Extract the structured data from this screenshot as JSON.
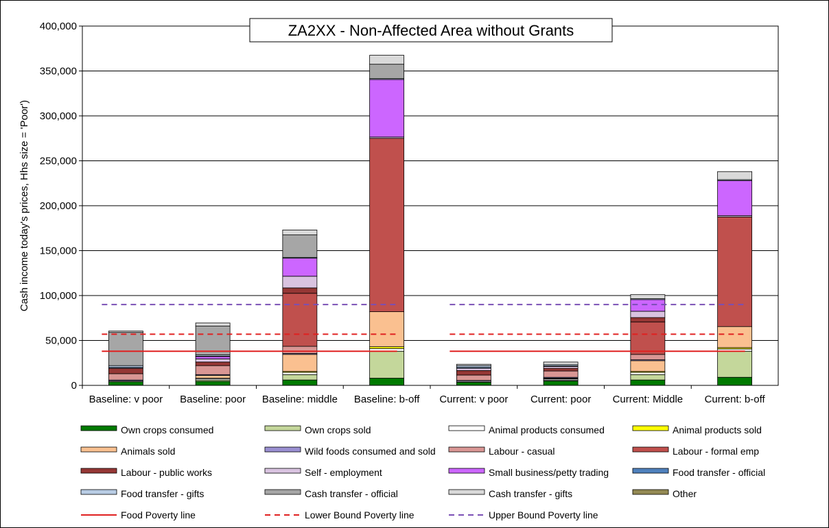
{
  "chart_data": {
    "type": "bar",
    "stacked": true,
    "title": "ZA2XX - Non-Affected Area without Grants",
    "xlabel": "",
    "ylabel": "Cash income today's prices, Hhs size = 'Poor')",
    "ylim": [
      0,
      400000
    ],
    "yticks": [
      0,
      50000,
      100000,
      150000,
      200000,
      250000,
      300000,
      350000,
      400000
    ],
    "ytick_labels": [
      "0",
      "50,000",
      "100,000",
      "150,000",
      "200,000",
      "250,000",
      "300,000",
      "350,000",
      "400,000"
    ],
    "grid": true,
    "legend_position": "bottom",
    "categories": [
      "Baseline: v poor",
      "Baseline: poor",
      "Baseline: middle",
      "Baseline: b-off",
      "Current: v poor",
      "Current: poor",
      "Current: Middle",
      "Current: b-off"
    ],
    "series": [
      {
        "name": "Own crops consumed",
        "color": "#007a00",
        "values": [
          4000,
          4500,
          6000,
          8000,
          3500,
          5000,
          6000,
          9000
        ]
      },
      {
        "name": "Own crops sold",
        "color": "#c4d79b",
        "values": [
          0,
          1500,
          6000,
          30000,
          0,
          500,
          6000,
          29000
        ]
      },
      {
        "name": "Animal products consumed",
        "color": "#ffffff",
        "values": [
          1000,
          1500,
          2500,
          3000,
          1000,
          1500,
          2500,
          2500
        ]
      },
      {
        "name": "Animal products sold",
        "color": "#ffff00",
        "values": [
          0,
          500,
          1000,
          2000,
          0,
          500,
          1000,
          1500
        ]
      },
      {
        "name": "Animals sold",
        "color": "#fac090",
        "values": [
          0,
          3000,
          19000,
          39000,
          0,
          500,
          12000,
          23500
        ]
      },
      {
        "name": "Wild foods consumed and sold",
        "color": "#9a8fd1",
        "values": [
          1000,
          1000,
          1000,
          0,
          1000,
          1000,
          1000,
          0
        ]
      },
      {
        "name": "Labour - casual",
        "color": "#d99694",
        "values": [
          7000,
          10000,
          8000,
          0,
          6000,
          7000,
          6000,
          0
        ]
      },
      {
        "name": "Labour - formal emp",
        "color": "#c0504d",
        "values": [
          0,
          0,
          59000,
          193000,
          0,
          0,
          36000,
          122000
        ]
      },
      {
        "name": "Labour - public works",
        "color": "#953735",
        "values": [
          6000,
          4000,
          6000,
          0,
          5000,
          3000,
          5000,
          0
        ]
      },
      {
        "name": "Self - employment",
        "color": "#d9c3e0",
        "values": [
          0,
          3500,
          13000,
          1500,
          2500,
          2000,
          7000,
          1500
        ]
      },
      {
        "name": "Small business/petty trading",
        "color": "#cc66ff",
        "values": [
          0,
          2500,
          20000,
          64000,
          0,
          0,
          13000,
          39000
        ]
      },
      {
        "name": "Food transfer - official",
        "color": "#4f81bd",
        "values": [
          1000,
          500,
          0,
          0,
          1000,
          500,
          0,
          0
        ]
      },
      {
        "name": "Food transfer - gifts",
        "color": "#b8cce4",
        "values": [
          2000,
          1500,
          1000,
          1000,
          2000,
          1500,
          1000,
          1000
        ]
      },
      {
        "name": "Cash transfer - official",
        "color": "#a6a6a6",
        "values": [
          37000,
          32000,
          25000,
          16000,
          0,
          0,
          0,
          0
        ]
      },
      {
        "name": "Cash transfer - gifts",
        "color": "#d9d9d9",
        "values": [
          1500,
          3500,
          5500,
          10000,
          1500,
          3000,
          4500,
          9000
        ]
      },
      {
        "name": "Other",
        "color": "#948a54",
        "values": [
          0,
          0,
          0,
          0,
          0,
          0,
          0,
          0
        ]
      }
    ],
    "lines": [
      {
        "name": "Food Poverty line",
        "color": "#e02020",
        "style": "solid",
        "value": 38000,
        "groups": [
          [
            0,
            3
          ],
          [
            4,
            7
          ]
        ]
      },
      {
        "name": "Lower Bound Poverty line",
        "color": "#e02020",
        "style": "dashed",
        "value": 57000,
        "groups": [
          [
            0,
            3
          ],
          [
            4,
            7
          ]
        ]
      },
      {
        "name": "Upper Bound Poverty line",
        "color": "#7a4fb5",
        "style": "dashed",
        "value": 90000,
        "groups": [
          [
            0,
            3
          ],
          [
            4,
            7
          ]
        ]
      }
    ]
  }
}
